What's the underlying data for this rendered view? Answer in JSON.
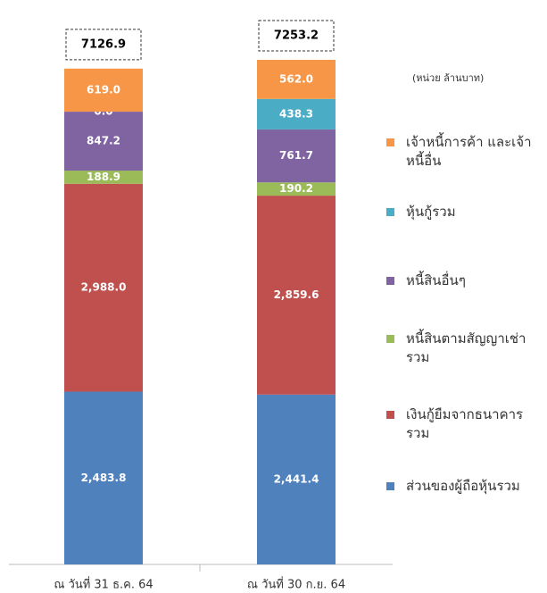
{
  "chart_data": {
    "type": "stacked_bar",
    "unit_note": "(หน่วย ล้านบาท)",
    "categories": [
      "ณ วันที่ 31 ธ.ค. 64",
      "ณ วันที่ 30 ก.ย. 64"
    ],
    "totals": [
      7126.9,
      7253.2
    ],
    "series": [
      {
        "name": "ส่วนของผู้ถือหุ้นรวม",
        "color": "#4f81bd",
        "values": [
          2483.8,
          2441.4
        ],
        "value_labels": [
          "2,483.8",
          "2,441.4"
        ]
      },
      {
        "name": "เงินกู้ยืมจากธนาคารรวม",
        "color": "#c0504d",
        "values": [
          2988.0,
          2859.6
        ],
        "value_labels": [
          "2,988.0",
          "2,859.6"
        ]
      },
      {
        "name": "หนี้สินตามสัญญาเช่ารวม",
        "color": "#9bbb59",
        "values": [
          188.9,
          190.2
        ],
        "value_labels": [
          "188.9",
          "190.2"
        ]
      },
      {
        "name": "หนี้สินอื่นๆ",
        "color": "#8064a2",
        "values": [
          847.2,
          761.7
        ],
        "value_labels": [
          "847.2",
          "761.7"
        ]
      },
      {
        "name": "หุ้นกู้รวม",
        "color": "#4bacc6",
        "values": [
          0.0,
          438.3
        ],
        "value_labels": [
          "0.0",
          "438.3"
        ]
      },
      {
        "name": "เจ้าหนี้การค้า และเจ้าหนี้อื่น",
        "color": "#f79646",
        "values": [
          619.0,
          562.0
        ],
        "value_labels": [
          "619.0",
          "562.0"
        ]
      }
    ]
  }
}
